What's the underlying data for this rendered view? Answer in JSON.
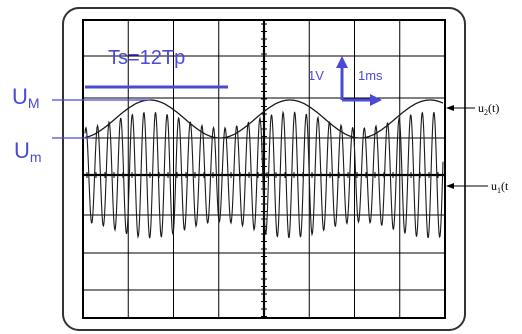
{
  "labels": {
    "sweep_relation": "Ts=12Tp",
    "U_M": "UM",
    "U_m": "Um",
    "volt_div": "1V",
    "time_div": "1ms",
    "u2": "u2(t)",
    "u1": "u1(t"
  },
  "colors": {
    "label_blue": "#4a4ad6",
    "frame": "#333333",
    "grid": "#000000",
    "trace": "#1a1a1a"
  },
  "screen": {
    "divisions_x": 8,
    "divisions_y": 8
  }
}
